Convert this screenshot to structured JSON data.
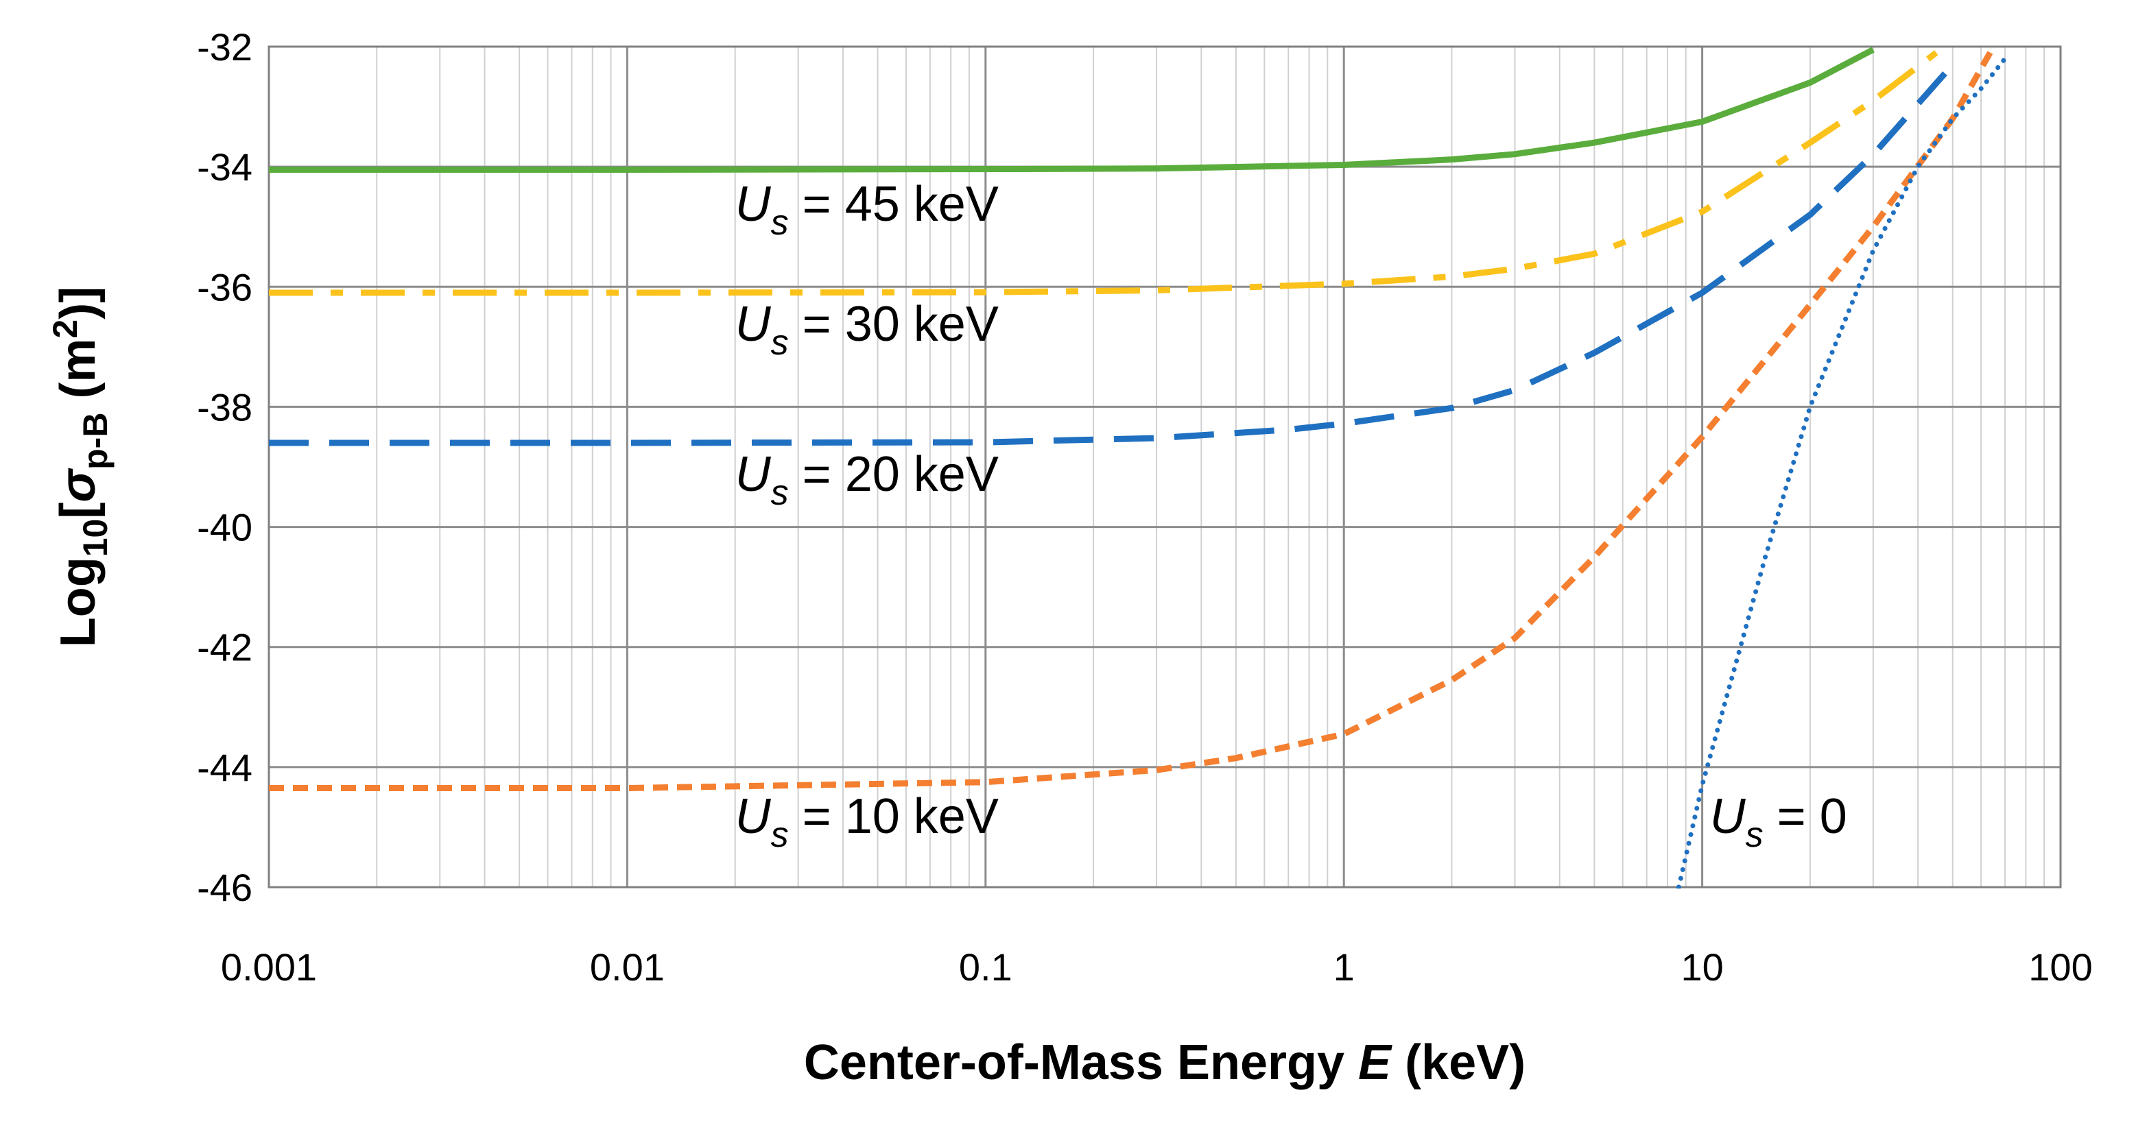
{
  "chart_data": {
    "type": "line",
    "title": "",
    "xlabel": {
      "main": "Center-of-Mass Energy ",
      "var": "E",
      "unit": " (keV)"
    },
    "ylabel": {
      "main": "Log",
      "sub": "10",
      "bracket_open": "[",
      "sym": "σ",
      "sub2": "p-B",
      "unit_open": " (m",
      "sup": "2",
      "unit_close": ")]"
    },
    "x_scale": "log",
    "xlim": [
      0.001,
      100
    ],
    "ylim": [
      -46,
      -32
    ],
    "grid": true,
    "x_ticks": [
      {
        "value": 0.001,
        "label": "0.001"
      },
      {
        "value": 0.01,
        "label": "0.01"
      },
      {
        "value": 0.1,
        "label": "0.1"
      },
      {
        "value": 1,
        "label": "1"
      },
      {
        "value": 10,
        "label": "10"
      },
      {
        "value": 100,
        "label": "100"
      }
    ],
    "y_ticks": [
      {
        "value": -32,
        "label": "-32"
      },
      {
        "value": -34,
        "label": "-34"
      },
      {
        "value": -36,
        "label": "-36"
      },
      {
        "value": -38,
        "label": "-38"
      },
      {
        "value": -40,
        "label": "-40"
      },
      {
        "value": -42,
        "label": "-42"
      },
      {
        "value": -44,
        "label": "-44"
      },
      {
        "value": -46,
        "label": "-46"
      }
    ],
    "series": [
      {
        "id": "us45",
        "color": "#5aad3c",
        "dash": "solid",
        "x": [
          0.001,
          0.01,
          0.1,
          0.3,
          1,
          2,
          3,
          5,
          10,
          20,
          30
        ],
        "y": [
          -34.05,
          -34.05,
          -34.04,
          -34.03,
          -33.97,
          -33.88,
          -33.79,
          -33.6,
          -33.25,
          -32.6,
          -32.05
        ]
      },
      {
        "id": "us30",
        "color": "#fbc21c",
        "dash": "dashdot",
        "x": [
          0.001,
          0.01,
          0.1,
          0.3,
          1,
          2,
          3,
          5,
          10,
          20,
          30,
          45
        ],
        "y": [
          -36.1,
          -36.1,
          -36.09,
          -36.06,
          -35.95,
          -35.83,
          -35.7,
          -35.45,
          -34.75,
          -33.6,
          -32.9,
          -32.1
        ]
      },
      {
        "id": "us20",
        "color": "#1f70c1",
        "dash": "dash",
        "x": [
          0.001,
          0.01,
          0.1,
          0.3,
          0.7,
          1,
          2,
          3,
          5,
          10,
          20,
          30,
          50
        ],
        "y": [
          -38.6,
          -38.6,
          -38.59,
          -38.52,
          -38.38,
          -38.28,
          -38.02,
          -37.72,
          -37.1,
          -36.1,
          -34.8,
          -33.8,
          -32.3
        ]
      },
      {
        "id": "us10",
        "color": "#f47f30",
        "dash": "shortdash",
        "x": [
          0.001,
          0.01,
          0.1,
          0.3,
          0.5,
          1,
          2,
          3,
          5,
          10,
          20,
          30,
          50,
          65
        ],
        "y": [
          -44.35,
          -44.35,
          -44.25,
          -44.05,
          -43.85,
          -43.45,
          -42.55,
          -41.85,
          -40.5,
          -38.5,
          -36.3,
          -35.0,
          -33.2,
          -32.0
        ]
      },
      {
        "id": "us0",
        "color": "#1f70c1",
        "dash": "dot",
        "x": [
          8.6,
          10,
          15,
          20,
          30,
          40,
          50,
          60,
          70
        ],
        "y": [
          -46.0,
          -44.3,
          -40.5,
          -38.0,
          -35.4,
          -34.0,
          -33.2,
          -32.7,
          -32.2
        ]
      }
    ],
    "annotations": [
      {
        "id": "us45",
        "x": 0.02,
        "y": -34.9,
        "var": "U",
        "sub": "s",
        "text": " = 45 keV"
      },
      {
        "id": "us30",
        "x": 0.02,
        "y": -36.9,
        "var": "U",
        "sub": "s",
        "text": " = 30 keV"
      },
      {
        "id": "us20",
        "x": 0.02,
        "y": -39.4,
        "var": "U",
        "sub": "s",
        "text": " = 20 keV"
      },
      {
        "id": "us10",
        "x": 0.02,
        "y": -45.1,
        "var": "U",
        "sub": "s",
        "text": " = 10 keV"
      },
      {
        "id": "us0",
        "x": 10.5,
        "y": -45.1,
        "var": "U",
        "sub": "s",
        "text": " = 0"
      }
    ]
  }
}
